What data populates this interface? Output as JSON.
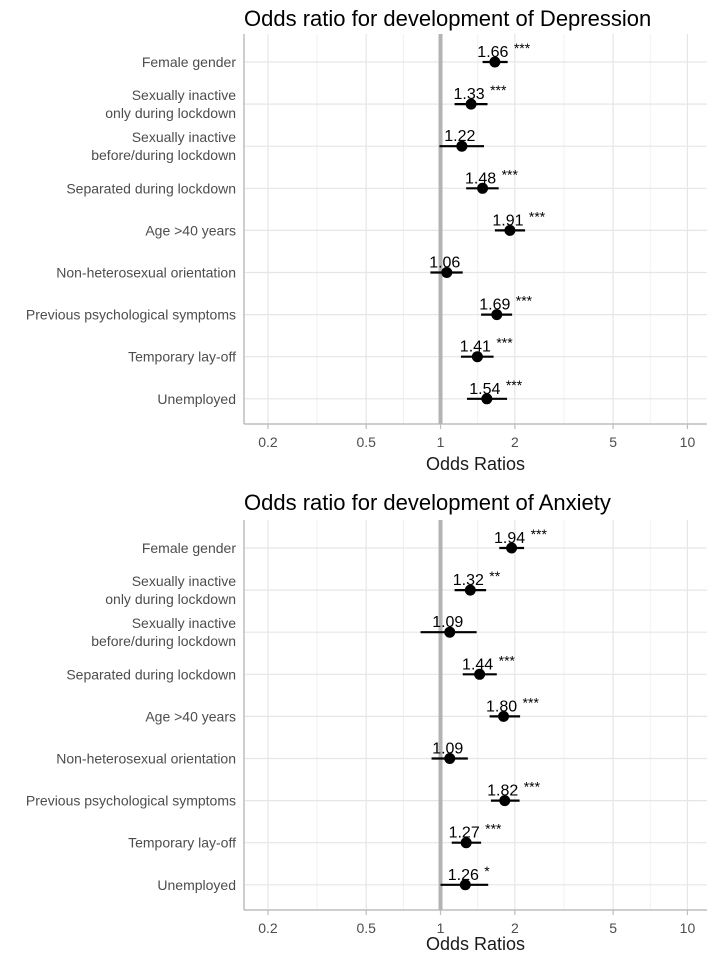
{
  "chart_data": [
    {
      "type": "forest",
      "title": "Odds ratio for development of Depression",
      "xlabel": "Odds Ratios",
      "xscale": "log",
      "xlim": [
        0.16,
        12.0
      ],
      "xticks": [
        0.2,
        0.5,
        1,
        2,
        5,
        10
      ],
      "xtick_labels": [
        "0.2",
        "0.5",
        "1",
        "2",
        "5",
        "10"
      ],
      "reference_line": 1,
      "categories": [
        "Female gender",
        "Sexually inactive\nonly during lockdown",
        "Sexually inactive\nbefore/during lockdown",
        "Separated during lockdown",
        "Age >40 years",
        "Non-heterosexual orientation",
        "Previous psychological symptoms",
        "Temporary lay-off",
        "Unemployed"
      ],
      "values": [
        1.66,
        1.33,
        1.22,
        1.48,
        1.91,
        1.06,
        1.69,
        1.41,
        1.54
      ],
      "value_labels": [
        "1.66",
        "1.33",
        "1.22",
        "1.48",
        "1.91",
        "1.06",
        "1.69",
        "1.41",
        "1.54"
      ],
      "ci_low": [
        1.48,
        1.14,
        0.99,
        1.27,
        1.66,
        0.91,
        1.46,
        1.21,
        1.28
      ],
      "ci_high": [
        1.87,
        1.55,
        1.5,
        1.72,
        2.2,
        1.23,
        1.95,
        1.64,
        1.86
      ],
      "significance": [
        "***",
        "***",
        "",
        "***",
        "***",
        "",
        "***",
        "***",
        "***"
      ]
    },
    {
      "type": "forest",
      "title": "Odds ratio for development of Anxiety",
      "xlabel": "Odds Ratios",
      "xscale": "log",
      "xlim": [
        0.16,
        12.0
      ],
      "xticks": [
        0.2,
        0.5,
        1,
        2,
        5,
        10
      ],
      "xtick_labels": [
        "0.2",
        "0.5",
        "1",
        "2",
        "5",
        "10"
      ],
      "reference_line": 1,
      "categories": [
        "Female gender",
        "Sexually inactive\nonly during lockdown",
        "Sexually inactive\nbefore/during lockdown",
        "Separated during lockdown",
        "Age >40 years",
        "Non-heterosexual orientation",
        "Previous psychological symptoms",
        "Temporary lay-off",
        "Unemployed"
      ],
      "values": [
        1.94,
        1.32,
        1.09,
        1.44,
        1.8,
        1.09,
        1.82,
        1.27,
        1.26
      ],
      "value_labels": [
        "1.94",
        "1.32",
        "1.09",
        "1.44",
        "1.80",
        "1.09",
        "1.82",
        "1.27",
        "1.26"
      ],
      "ci_low": [
        1.73,
        1.14,
        0.83,
        1.23,
        1.58,
        0.92,
        1.6,
        1.11,
        1.0
      ],
      "ci_high": [
        2.18,
        1.53,
        1.4,
        1.69,
        2.1,
        1.29,
        2.09,
        1.46,
        1.56
      ],
      "significance": [
        "***",
        "**",
        "",
        "***",
        "***",
        "",
        "***",
        "***",
        "*"
      ]
    }
  ]
}
